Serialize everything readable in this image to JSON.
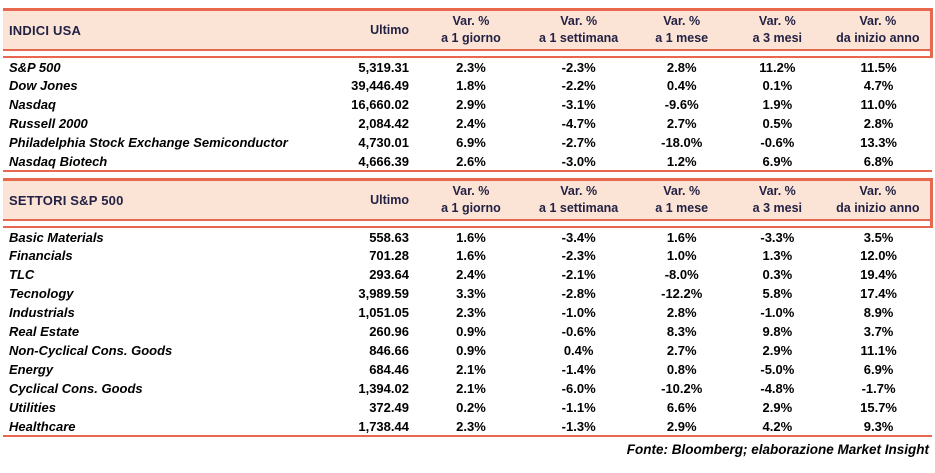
{
  "colors": {
    "accent_line": "#E8684F",
    "header_bg": "#FBE4D6",
    "header_text": "#232144",
    "body_text": "#000000"
  },
  "columns": {
    "ultimo_label": "Ultimo",
    "var_prefix": "Var. %",
    "periods": [
      "a 1 giorno",
      "a 1 settimana",
      "a 1 mese",
      "a 3 mesi",
      "da inizio anno"
    ]
  },
  "sections": [
    {
      "title": "INDICI USA",
      "rows": [
        {
          "name": "S&P 500",
          "ultimo": "5,319.31",
          "vars": [
            "2.3%",
            "-2.3%",
            "2.8%",
            "11.2%",
            "11.5%"
          ]
        },
        {
          "name": "Dow Jones",
          "ultimo": "39,446.49",
          "vars": [
            "1.8%",
            "-2.2%",
            "0.4%",
            "0.1%",
            "4.7%"
          ]
        },
        {
          "name": "Nasdaq",
          "ultimo": "16,660.02",
          "vars": [
            "2.9%",
            "-3.1%",
            "-9.6%",
            "1.9%",
            "11.0%"
          ]
        },
        {
          "name": "Russell 2000",
          "ultimo": "2,084.42",
          "vars": [
            "2.4%",
            "-4.7%",
            "2.7%",
            "0.5%",
            "2.8%"
          ]
        },
        {
          "name": "Philadelphia Stock Exchange Semiconductor",
          "ultimo": "4,730.01",
          "vars": [
            "6.9%",
            "-2.7%",
            "-18.0%",
            "-0.6%",
            "13.3%"
          ]
        },
        {
          "name": "Nasdaq Biotech",
          "ultimo": "4,666.39",
          "vars": [
            "2.6%",
            "-3.0%",
            "1.2%",
            "6.9%",
            "6.8%"
          ]
        }
      ]
    },
    {
      "title": "SETTORI S&P 500",
      "rows": [
        {
          "name": "Basic Materials",
          "ultimo": "558.63",
          "vars": [
            "1.6%",
            "-3.4%",
            "1.6%",
            "-3.3%",
            "3.5%"
          ]
        },
        {
          "name": "Financials",
          "ultimo": "701.28",
          "vars": [
            "1.6%",
            "-2.3%",
            "1.0%",
            "1.3%",
            "12.0%"
          ]
        },
        {
          "name": "TLC",
          "ultimo": "293.64",
          "vars": [
            "2.4%",
            "-2.1%",
            "-8.0%",
            "0.3%",
            "19.4%"
          ]
        },
        {
          "name": "Tecnology",
          "ultimo": "3,989.59",
          "vars": [
            "3.3%",
            "-2.8%",
            "-12.2%",
            "5.8%",
            "17.4%"
          ]
        },
        {
          "name": "Industrials",
          "ultimo": "1,051.05",
          "vars": [
            "2.3%",
            "-1.0%",
            "2.8%",
            "-1.0%",
            "8.9%"
          ]
        },
        {
          "name": "Real Estate",
          "ultimo": "260.96",
          "vars": [
            "0.9%",
            "-0.6%",
            "8.3%",
            "9.8%",
            "3.7%"
          ]
        },
        {
          "name": "Non-Cyclical Cons. Goods",
          "ultimo": "846.66",
          "vars": [
            "0.9%",
            "0.4%",
            "2.7%",
            "2.9%",
            "11.1%"
          ]
        },
        {
          "name": "Energy",
          "ultimo": "684.46",
          "vars": [
            "2.1%",
            "-1.4%",
            "0.8%",
            "-5.0%",
            "6.9%"
          ]
        },
        {
          "name": "Cyclical Cons. Goods",
          "ultimo": "1,394.02",
          "vars": [
            "2.1%",
            "-6.0%",
            "-10.2%",
            "-4.8%",
            "-1.7%"
          ]
        },
        {
          "name": "Utilities",
          "ultimo": "372.49",
          "vars": [
            "0.2%",
            "-1.1%",
            "6.6%",
            "2.9%",
            "15.7%"
          ]
        },
        {
          "name": "Healthcare",
          "ultimo": "1,738.44",
          "vars": [
            "2.3%",
            "-1.3%",
            "2.9%",
            "4.2%",
            "9.3%"
          ]
        }
      ]
    }
  ],
  "footer": {
    "text": "Fonte: Bloomberg; elaborazione Market Insight"
  }
}
